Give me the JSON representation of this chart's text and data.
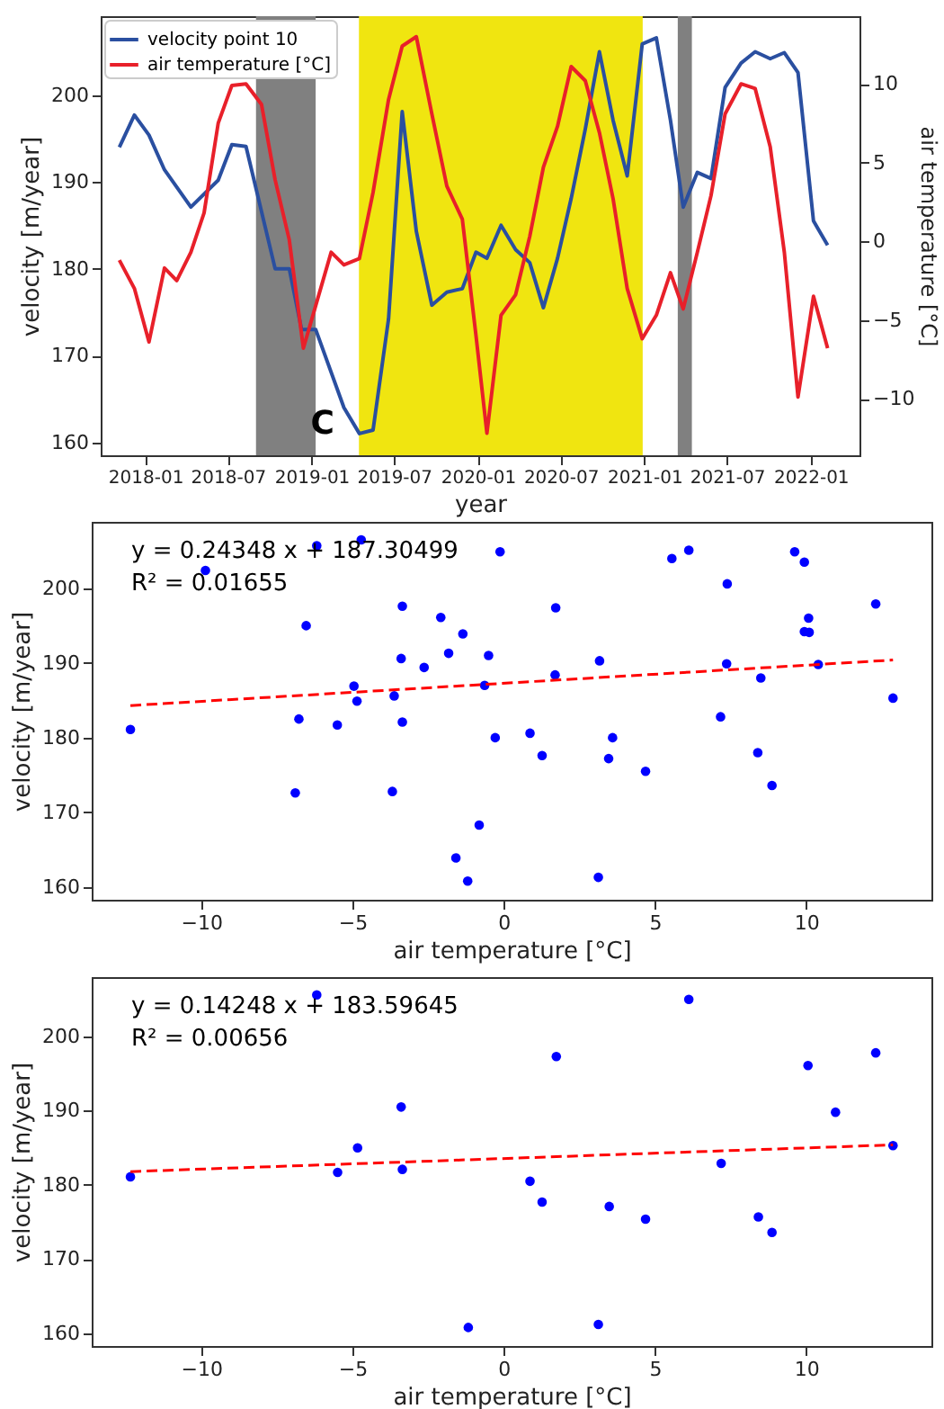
{
  "chart_data": [
    {
      "type": "line",
      "xlabel": "year",
      "ylabel": "velocity [m/year]",
      "y2label": "air temperature [°C]",
      "legend": "top left",
      "xlim": [
        "2017-09-25",
        "2022-04-18"
      ],
      "xticks": [
        "2018-01",
        "2018-07",
        "2019-01",
        "2019-07",
        "2020-01",
        "2020-07",
        "2021-01",
        "2021-07",
        "2022-01"
      ],
      "ylim": [
        158.5,
        209.1
      ],
      "yticks": [
        160,
        170,
        180,
        190,
        200
      ],
      "y2lim": [
        -13.6,
        14.3
      ],
      "y2ticks": [
        -10,
        -5,
        0,
        5,
        10
      ],
      "bands": [
        {
          "axis": "x",
          "from": "2018-09-01",
          "to": "2019-01-10",
          "color": "#808080"
        },
        {
          "axis": "x",
          "from": "2019-04-15",
          "to": "2020-12-28",
          "color": "#f0e510"
        },
        {
          "axis": "x",
          "from": "2021-03-15",
          "to": "2021-04-15",
          "color": "#808080"
        }
      ],
      "annotations": [
        {
          "text": "C",
          "x": "2019-01-25",
          "y": 162
        }
      ],
      "series": [
        {
          "name": "velocity point 10",
          "color": "#2a4fa0",
          "x": [
            "2017-11-05",
            "2017-12-08",
            "2018-01-09",
            "2018-02-12",
            "2018-04-11",
            "2018-06-10",
            "2018-07-10",
            "2018-08-10",
            "2018-10-13",
            "2018-11-13",
            "2018-12-10",
            "2019-01-10",
            "2019-03-13",
            "2019-04-16",
            "2019-05-16",
            "2019-06-19",
            "2019-07-19",
            "2019-08-19",
            "2019-09-22",
            "2019-10-25",
            "2019-11-28",
            "2019-12-28",
            "2020-01-21",
            "2020-02-21",
            "2020-03-24",
            "2020-04-24",
            "2020-05-24",
            "2020-06-24",
            "2020-07-24",
            "2020-08-24",
            "2020-09-24",
            "2020-10-24",
            "2020-11-24",
            "2020-12-27",
            "2021-01-27",
            "2021-02-27",
            "2021-03-27",
            "2021-04-27",
            "2021-05-27",
            "2021-06-27",
            "2021-08-01",
            "2021-09-01",
            "2021-10-04",
            "2021-11-04",
            "2021-12-04",
            "2022-01-07",
            "2022-02-07"
          ],
          "values": [
            194.0,
            197.7,
            195.4,
            191.4,
            187.1,
            190.2,
            194.3,
            194.1,
            180,
            180,
            173,
            173,
            164,
            161,
            161.4,
            174.2,
            198.1,
            184.3,
            175.8,
            177.3,
            177.7,
            181.9,
            181.2,
            185.0,
            182.2,
            180.7,
            175.5,
            181.2,
            188.1,
            196.1,
            205.0,
            197.1,
            190.7,
            205.9,
            206.6,
            197.1,
            187.1,
            191.1,
            190.4,
            200.9,
            203.7,
            205.0,
            204.2,
            204.9,
            202.6,
            185.5,
            182.7
          ]
        },
        {
          "name": "air temperature [°C]",
          "color": "#e8202a",
          "axis": "y2",
          "x": [
            "2017-11-05",
            "2017-12-08",
            "2018-01-09",
            "2018-02-12",
            "2018-03-11",
            "2018-04-11",
            "2018-05-10",
            "2018-06-10",
            "2018-07-10",
            "2018-08-10",
            "2018-09-13",
            "2018-10-13",
            "2018-11-13",
            "2018-12-14",
            "2019-01-10",
            "2019-02-13",
            "2019-03-13",
            "2019-04-16",
            "2019-05-16",
            "2019-06-19",
            "2019-07-19",
            "2019-08-19",
            "2019-09-22",
            "2019-10-25",
            "2019-11-28",
            "2019-12-28",
            "2020-01-21",
            "2020-02-21",
            "2020-03-24",
            "2020-04-24",
            "2020-05-24",
            "2020-06-24",
            "2020-07-24",
            "2020-08-24",
            "2020-09-24",
            "2020-10-24",
            "2020-11-24",
            "2020-12-27",
            "2021-01-27",
            "2021-02-27",
            "2021-03-27",
            "2021-04-27",
            "2021-05-27",
            "2021-06-27",
            "2021-08-01",
            "2021-09-01",
            "2021-10-04",
            "2021-11-04",
            "2021-12-04",
            "2022-01-07",
            "2022-02-07"
          ],
          "values": [
            -1.2,
            -3.0,
            -6.4,
            -1.7,
            -2.5,
            -0.7,
            1.8,
            7.5,
            9.9,
            10.0,
            8.7,
            3.9,
            0.1,
            -6.8,
            -4.1,
            -0.7,
            -1.5,
            -1.1,
            3.1,
            9.0,
            12.4,
            13.0,
            8.1,
            3.5,
            1.4,
            -6.0,
            -12.2,
            -4.7,
            -3.4,
            0.3,
            4.7,
            7.3,
            11.1,
            10.2,
            6.9,
            2.7,
            -3.0,
            -6.2,
            -4.7,
            -2.0,
            -4.3,
            -0.7,
            2.9,
            8.1,
            10.0,
            9.7,
            6.0,
            -0.7,
            -9.9,
            -3.5,
            -6.8
          ]
        }
      ]
    },
    {
      "type": "scatter",
      "xlabel": "air temperature [°C]",
      "ylabel": "velocity [m/year]",
      "xlim": [
        -13.62,
        14.14
      ],
      "xticks": [
        -10,
        -5,
        0,
        5,
        10
      ],
      "ylim": [
        158.3,
        208.9
      ],
      "yticks": [
        160,
        170,
        180,
        190,
        200
      ],
      "annotations": [
        "y = 0.24348 x + 187.30499",
        "R² = 0.01655"
      ],
      "series": [
        {
          "color": "#0000ff",
          "marker": "circle",
          "x": [
            -12.34,
            -9.86,
            -6.18,
            -4.71,
            -6.53,
            -3.35,
            -2.08,
            -1.35,
            -1.82,
            -3.39,
            -2.63,
            -0.5,
            -0.12,
            -4.95,
            -3.62,
            -4.85,
            -6.77,
            -5.5,
            -3.35,
            -0.63,
            1.7,
            1.72,
            3.17,
            -0.28,
            0.87,
            1.27,
            3.6,
            3.47,
            4.69,
            -6.89,
            -3.68,
            -0.81,
            -1.58,
            -1.19,
            3.13,
            5.56,
            6.12,
            7.39,
            7.37,
            7.17,
            8.5,
            8.4,
            8.87,
            9.62,
            9.94,
            9.94,
            10.1,
            10.08,
            10.4,
            12.3,
            12.87
          ],
          "values": [
            181.1,
            202.4,
            205.7,
            206.5,
            195.0,
            197.6,
            196.1,
            193.9,
            191.3,
            190.6,
            189.4,
            191.0,
            204.9,
            186.9,
            185.6,
            184.9,
            182.5,
            181.7,
            182.1,
            187.0,
            188.4,
            197.4,
            190.3,
            180.0,
            180.6,
            177.6,
            180.0,
            177.2,
            175.5,
            172.6,
            172.8,
            168.3,
            163.9,
            160.8,
            161.3,
            204.0,
            205.1,
            200.6,
            189.9,
            182.8,
            188.0,
            178.0,
            173.6,
            204.9,
            203.5,
            194.2,
            194.1,
            196.0,
            189.8,
            197.9,
            185.3
          ]
        },
        {
          "type": "line",
          "color": "#ff0000",
          "line_style": "dashed",
          "x": [
            -12.34,
            12.87
          ],
          "values": [
            184.3,
            190.4
          ]
        }
      ]
    },
    {
      "type": "scatter",
      "xlabel": "air temperature [°C]",
      "ylabel": "velocity [m/year]",
      "xlim": [
        -13.62,
        14.14
      ],
      "xticks": [
        -10,
        -5,
        0,
        5,
        10
      ],
      "ylim": [
        158.3,
        208.0
      ],
      "yticks": [
        160,
        170,
        180,
        190,
        200
      ],
      "annotations": [
        "y = 0.14248 x + 183.59645",
        "R² = 0.00656"
      ],
      "series": [
        {
          "color": "#0000ff",
          "marker": "circle",
          "x": [
            -12.34,
            -6.18,
            -5.49,
            -4.83,
            -3.39,
            -3.35,
            -1.17,
            0.87,
            1.27,
            1.74,
            3.13,
            3.49,
            4.69,
            6.12,
            7.19,
            8.42,
            8.87,
            10.06,
            10.97,
            12.3,
            12.87
          ],
          "values": [
            181.1,
            205.6,
            181.7,
            185.0,
            190.5,
            182.1,
            160.8,
            180.5,
            177.7,
            197.3,
            161.2,
            177.1,
            175.4,
            205.0,
            182.9,
            175.7,
            173.6,
            196.1,
            189.8,
            197.8,
            185.3
          ]
        },
        {
          "type": "line",
          "color": "#ff0000",
          "line_style": "dashed",
          "x": [
            -12.34,
            12.87
          ],
          "values": [
            181.8,
            185.4
          ]
        }
      ]
    }
  ]
}
